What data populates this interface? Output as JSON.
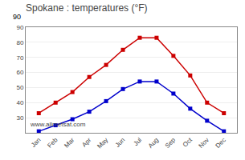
{
  "chart_data": {
    "type": "line",
    "title": "Spokane : temperatures (°F)",
    "categories": [
      "Jan",
      "Feb",
      "Mar",
      "Apr",
      "May",
      "Jun",
      "Jul",
      "Aug",
      "Sep",
      "Oct",
      "Nov",
      "Dec"
    ],
    "series": [
      {
        "color": "#cc0000",
        "marker": "square",
        "values": [
          33,
          40,
          47,
          57,
          65,
          75,
          83,
          83,
          71,
          58,
          40,
          33
        ]
      },
      {
        "color": "#0000cc",
        "marker": "square",
        "values": [
          21,
          25,
          29,
          34,
          41,
          49,
          54,
          54,
          46,
          36,
          28,
          21
        ]
      }
    ],
    "ylim": [
      20,
      90
    ],
    "yticks": [
      30,
      40,
      50,
      60,
      70,
      80,
      90
    ],
    "grid": true,
    "annotations": [
      "90",
      "www.allmetsat.com"
    ]
  }
}
